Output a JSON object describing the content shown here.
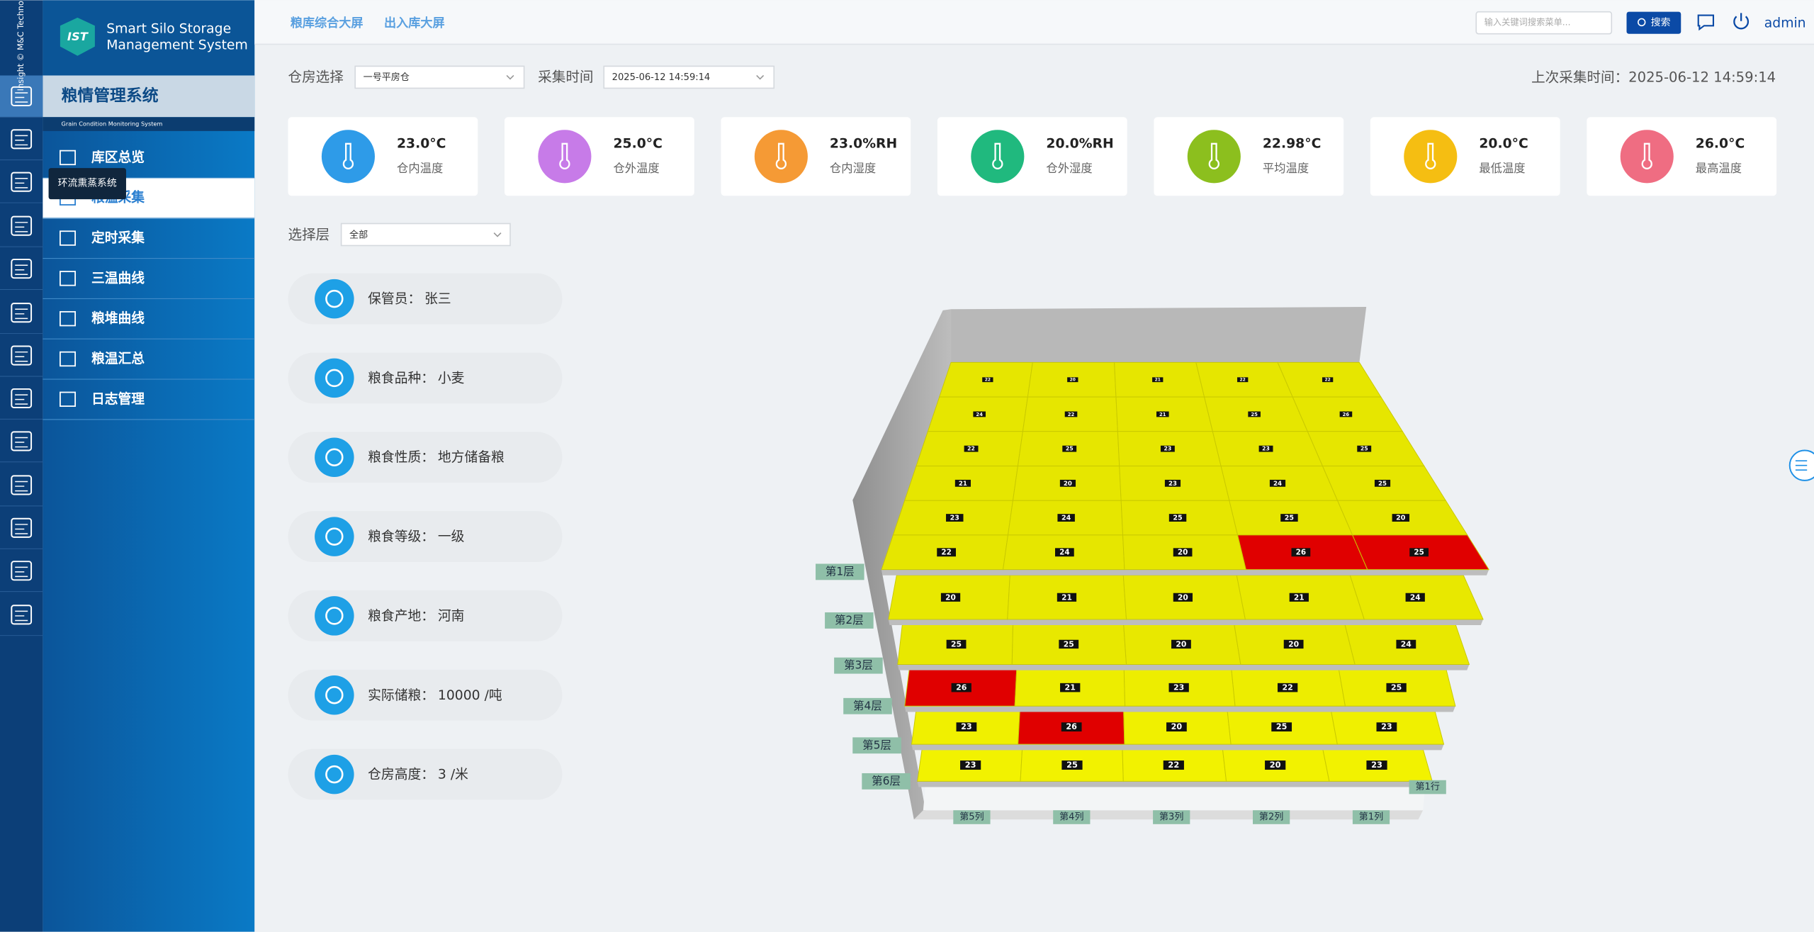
{
  "brand": {
    "vendor": "Insight © M&C Technology",
    "logo": "IST",
    "title_lines": [
      "Smart Silo Storage",
      "Management System"
    ]
  },
  "sidebar": {
    "title": "粮情管理系统",
    "subtitle": "Grain Condition Monitoring System",
    "menu": [
      "库区总览",
      "粮温采集",
      "定时采集",
      "三温曲线",
      "粮堆曲线",
      "粮温汇总",
      "日志管理"
    ],
    "active": 1,
    "tooltip": "环流熏蒸系统"
  },
  "topbar": {
    "links": [
      "粮库综合大屏",
      "出入库大屏"
    ],
    "search_placeholder": "输入关键词搜索菜单...",
    "search_button": "搜索",
    "user": "admin"
  },
  "filters": {
    "warehouse_label": "仓房选择",
    "warehouse": "一号平房仓",
    "time_label": "采集时间",
    "time": "2025-06-12 14:59:14",
    "last_label": "上次采集时间：",
    "last_time": "2025-06-12 14:59:14",
    "layer_label": "选择层",
    "layer": "全部"
  },
  "stats": [
    {
      "value": "23.0°C",
      "label": "仓内温度",
      "color": "#2e9be8"
    },
    {
      "value": "25.0°C",
      "label": "仓外温度",
      "color": "#c77be8"
    },
    {
      "value": "23.0%RH",
      "label": "仓内湿度",
      "color": "#f59a35"
    },
    {
      "value": "20.0%RH",
      "label": "仓外湿度",
      "color": "#20b97e"
    },
    {
      "value": "22.98°C",
      "label": "平均温度",
      "color": "#8cbf1e"
    },
    {
      "value": "20.0°C",
      "label": "最低温度",
      "color": "#f5be12"
    },
    {
      "value": "26.0°C",
      "label": "最高温度",
      "color": "#ef6d82"
    }
  ],
  "info": [
    {
      "label": "保管员：",
      "value": "张三"
    },
    {
      "label": "粮食品种：",
      "value": "小麦"
    },
    {
      "label": "粮食性质：",
      "value": "地方储备粮"
    },
    {
      "label": "粮食等级：",
      "value": "一级"
    },
    {
      "label": "粮食产地：",
      "value": "河南"
    },
    {
      "label": "实际储粮：",
      "value": "10000 /吨"
    },
    {
      "label": "仓房高度：",
      "value": "3 /米"
    }
  ],
  "grid": {
    "columns": [
      "第5列",
      "第4列",
      "第3列",
      "第2列",
      "第1列"
    ],
    "row_label": "第1行",
    "layers": [
      {
        "label": "第1层",
        "rows": [
          {
            "values": [
              22,
              20,
              21,
              22,
              22
            ],
            "colors": [
              "#e6e600",
              "#e6e600",
              "#e6e600",
              "#e6e600",
              "#e6e600"
            ]
          },
          {
            "values": [
              24,
              22,
              21,
              25,
              26
            ],
            "colors": [
              "#e6e600",
              "#e6e600",
              "#e6e600",
              "#e6e600",
              "#e6e600"
            ]
          },
          {
            "values": [
              22,
              25,
              23,
              23,
              25
            ],
            "colors": [
              "#e6e600",
              "#e6e600",
              "#e6e600",
              "#e6e600",
              "#e6e600"
            ]
          },
          {
            "values": [
              21,
              20,
              23,
              24,
              25
            ],
            "colors": [
              "#e6e600",
              "#e6e600",
              "#e6e600",
              "#e6e600",
              "#e6e600"
            ]
          },
          {
            "values": [
              23,
              24,
              25,
              25,
              20
            ],
            "colors": [
              "#e6e600",
              "#e6e600",
              "#e6e600",
              "#e6e600",
              "#e6e600"
            ]
          },
          {
            "values": [
              22,
              24,
              20,
              26,
              25
            ],
            "colors": [
              "#e6e600",
              "#e6e600",
              "#e6e600",
              "#e00000",
              "#e00000"
            ]
          }
        ]
      },
      {
        "label": "第2层",
        "rows": [
          {
            "values": [
              20,
              21,
              20,
              21,
              24
            ],
            "colors": [
              "#e8e800",
              "#e8e800",
              "#e8e800",
              "#e8e800",
              "#e8e800"
            ]
          }
        ]
      },
      {
        "label": "第3层",
        "rows": [
          {
            "values": [
              25,
              25,
              20,
              20,
              24
            ],
            "colors": [
              "#e8e800",
              "#e8e800",
              "#e8e800",
              "#e8e800",
              "#e8e800"
            ]
          }
        ]
      },
      {
        "label": "第4层",
        "rows": [
          {
            "values": [
              26,
              21,
              23,
              22,
              25
            ],
            "colors": [
              "#e00000",
              "#eded00",
              "#eded00",
              "#eded00",
              "#eded00"
            ]
          }
        ]
      },
      {
        "label": "第5层",
        "rows": [
          {
            "values": [
              23,
              26,
              20,
              25,
              23
            ],
            "colors": [
              "#f0f000",
              "#e00000",
              "#f0f000",
              "#f0f000",
              "#f0f000"
            ]
          }
        ]
      },
      {
        "label": "第6层",
        "rows": [
          {
            "values": [
              23,
              25,
              22,
              20,
              23
            ],
            "colors": [
              "#f2f200",
              "#f2f200",
              "#f2f200",
              "#f2f200",
              "#f2f200"
            ]
          }
        ]
      }
    ]
  }
}
